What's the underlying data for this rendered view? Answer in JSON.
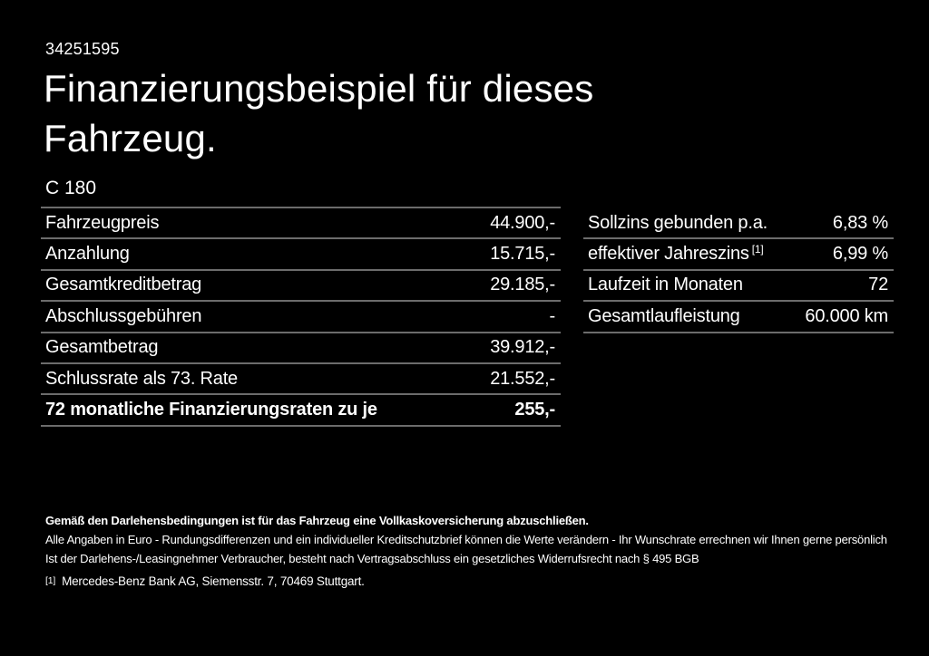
{
  "page": {
    "background_color": "#000000",
    "text_color": "#ffffff",
    "divider_color": "#6c6c6c"
  },
  "header": {
    "vehicle_id": "34251595",
    "title": "Finanzierungsbeispiel für dieses Fahrzeug.",
    "model": "C 180"
  },
  "finance_table": {
    "rows": [
      {
        "label": "Fahrzeugpreis",
        "value": "44.900,-"
      },
      {
        "label": "Anzahlung",
        "value": "15.715,-"
      },
      {
        "label": "Gesamtkreditbetrag",
        "value": "29.185,-"
      },
      {
        "label": "Abschlussgebühren",
        "value": "-"
      },
      {
        "label": "Gesamtbetrag",
        "value": "39.912,-"
      },
      {
        "label": "Schlussrate als 73. Rate",
        "value": "21.552,-"
      },
      {
        "label": "72 monatliche Finanzierungsraten zu je",
        "value": "255,-"
      }
    ]
  },
  "conditions_table": {
    "rows": [
      {
        "label": "Sollzins gebunden p.a.",
        "sup": "",
        "value": "6,83 %"
      },
      {
        "label": "effektiver Jahreszins",
        "sup": "[1]",
        "value": "6,99 %"
      },
      {
        "label": "Laufzeit in Monaten",
        "sup": "",
        "value": "72"
      },
      {
        "label": "Gesamtlaufleistung",
        "sup": "",
        "value": "60.000 km"
      }
    ]
  },
  "footer": {
    "insurance_note": "Gemäß den Darlehensbedingungen ist für das Fahrzeug eine Vollkaskoversicherung abzuschließen.",
    "disclaimer_1": "Alle Angaben in Euro - Rundungsdifferenzen und ein individueller Kreditschutzbrief können die Werte verändern - Ihr Wunschrate errechnen wir Ihnen gerne persönlich",
    "disclaimer_2": "Ist der Darlehens-/Leasingnehmer Verbraucher, besteht nach Vertragsabschluss ein gesetzliches Widerrufsrecht nach § 495 BGB",
    "footnote_marker": "[1]",
    "footnote_text": "Mercedes-Benz Bank AG, Siemensstr. 7, 70469 Stuttgart."
  }
}
